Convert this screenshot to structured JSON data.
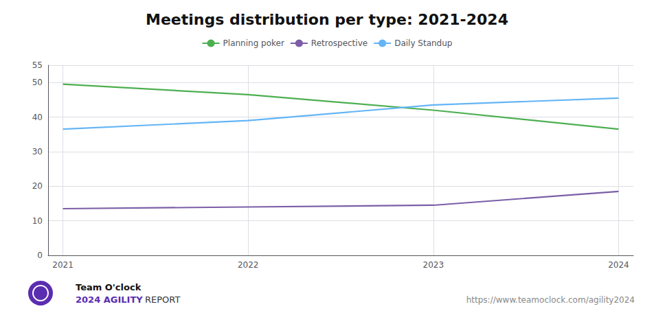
{
  "chart_data": {
    "type": "line",
    "title": "Meetings distribution per type: 2021-2024",
    "x": [
      2021,
      2022,
      2023,
      2024
    ],
    "series": [
      {
        "name": "Planning poker",
        "color": "#4caf50",
        "values": [
          49.5,
          46.5,
          42.0,
          36.5
        ]
      },
      {
        "name": "Retrospective",
        "color": "#7b5ea7",
        "values": [
          13.5,
          14.0,
          14.5,
          18.5
        ]
      },
      {
        "name": "Daily Standup",
        "color": "#64b5f6",
        "values": [
          36.5,
          39.0,
          43.5,
          45.5
        ]
      }
    ],
    "xlim": [
      2020.92,
      2024.08
    ],
    "xticks": [
      2021,
      2022,
      2023,
      2024
    ],
    "ylim": [
      0,
      55
    ],
    "yticks": [
      0,
      10,
      20,
      30,
      40,
      50
    ],
    "grid": true,
    "legend": "top",
    "annotations": [
      "Team O'clock",
      "2024 AGILITY",
      "REPORT",
      "https://www.teamoclock.com/agility2024"
    ]
  }
}
